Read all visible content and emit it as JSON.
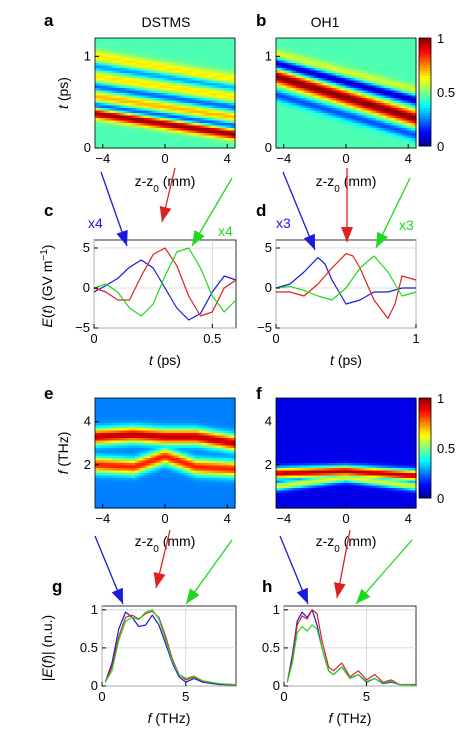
{
  "figure": {
    "panel_letters": [
      "a",
      "b",
      "c",
      "d",
      "e",
      "f",
      "g",
      "h"
    ],
    "column_titles": [
      "DSTMS",
      "OH1"
    ],
    "colorbar_ticks": [
      "1",
      "0.5",
      "0"
    ],
    "colormap": [
      "#00008f",
      "#0000ff",
      "#0080ff",
      "#00ffff",
      "#80ff80",
      "#ffff00",
      "#ff8000",
      "#ff0000",
      "#800000"
    ],
    "arrow_colors": {
      "blue": "#1a1adc",
      "red": "#e02020",
      "green": "#20d820"
    },
    "annotations": {
      "c_blue": "x4",
      "c_green": "x4",
      "d_blue": "x3",
      "d_green": "x3"
    }
  },
  "chart_data": [
    {
      "panel": "a",
      "type": "heatmap",
      "title": "DSTMS",
      "xlabel": "z-z0 (mm)",
      "ylabel": "t (ps)",
      "xticks": [
        "-4",
        "0",
        "4"
      ],
      "yticks": [
        "0",
        "1"
      ],
      "xlim": [
        -4.5,
        4.5
      ],
      "ylim": [
        0,
        1.2
      ],
      "ridges": [
        {
          "x": [
            -4.5,
            4.5
          ],
          "y": [
            0.38,
            0.15
          ],
          "width": 0.06,
          "level": 1.0
        },
        {
          "x": [
            -4.5,
            4.5
          ],
          "y": [
            0.56,
            0.33
          ],
          "width": 0.07,
          "level": 0.7
        },
        {
          "x": [
            -4.5,
            4.5
          ],
          "y": [
            0.78,
            0.56
          ],
          "width": 0.07,
          "level": 0.65
        },
        {
          "x": [
            -4.5,
            4.5
          ],
          "y": [
            1.0,
            0.74
          ],
          "width": 0.07,
          "level": 0.65
        }
      ],
      "troughs": [
        {
          "x": [
            -4.5,
            4.5
          ],
          "y": [
            0.46,
            0.24
          ],
          "width": 0.05,
          "level": 0.15
        },
        {
          "x": [
            -4.5,
            4.5
          ],
          "y": [
            0.67,
            0.44
          ],
          "width": 0.05,
          "level": 0.2
        },
        {
          "x": [
            -4.5,
            4.5
          ],
          "y": [
            0.89,
            0.66
          ],
          "width": 0.05,
          "level": 0.25
        }
      ],
      "background": 0.45
    },
    {
      "panel": "b",
      "type": "heatmap",
      "title": "OH1",
      "xlabel": "z-z0 (mm)",
      "ylabel": "",
      "xticks": [
        "-4",
        "0",
        "4"
      ],
      "yticks": [
        "0",
        "1"
      ],
      "xlim": [
        -4.5,
        4.5
      ],
      "ylim": [
        0,
        1.2
      ],
      "ridges": [
        {
          "x": [
            -4.5,
            4.5
          ],
          "y": [
            0.78,
            0.32
          ],
          "width": 0.08,
          "level": 1.0
        },
        {
          "x": [
            -4.5,
            4.5
          ],
          "y": [
            1.02,
            0.62
          ],
          "width": 0.06,
          "level": 0.6
        }
      ],
      "troughs": [
        {
          "x": [
            -4.5,
            4.5
          ],
          "y": [
            0.92,
            0.52
          ],
          "width": 0.06,
          "level": 0.05
        },
        {
          "x": [
            -4.5,
            4.5
          ],
          "y": [
            0.58,
            0.14
          ],
          "width": 0.06,
          "level": 0.2
        }
      ],
      "background": 0.45
    },
    {
      "panel": "c",
      "type": "line",
      "xlabel": "t (ps)",
      "ylabel": "E(t) (GV m⁻¹)",
      "xticks": [
        "0",
        "0.5"
      ],
      "yticks": [
        "-5",
        "0",
        "5"
      ],
      "xlim": [
        0,
        0.6
      ],
      "ylim": [
        -5,
        6
      ],
      "series": [
        {
          "color": "blue",
          "x": [
            0,
            0.05,
            0.1,
            0.15,
            0.2,
            0.25,
            0.3,
            0.35,
            0.4,
            0.45,
            0.5,
            0.55,
            0.6
          ],
          "y": [
            -0.5,
            0.3,
            1.2,
            2.6,
            3.5,
            2.5,
            0.0,
            -2.5,
            -4.0,
            -3.2,
            -0.5,
            1.5,
            1.0
          ]
        },
        {
          "color": "red",
          "x": [
            0,
            0.05,
            0.1,
            0.15,
            0.2,
            0.25,
            0.3,
            0.35,
            0.4,
            0.45,
            0.5,
            0.55,
            0.6
          ],
          "y": [
            0.0,
            -0.5,
            -1.5,
            -1.5,
            1.5,
            4.2,
            5.0,
            2.8,
            -1.0,
            -3.5,
            -3.0,
            0.0,
            1.0
          ]
        },
        {
          "color": "green",
          "x": [
            0,
            0.05,
            0.1,
            0.15,
            0.2,
            0.25,
            0.3,
            0.35,
            0.4,
            0.45,
            0.5,
            0.55,
            0.6
          ],
          "y": [
            0.0,
            0.5,
            -0.5,
            -2.5,
            -3.5,
            -2.0,
            1.5,
            4.5,
            5.0,
            2.5,
            -1.0,
            -3.0,
            -1.5
          ]
        }
      ]
    },
    {
      "panel": "d",
      "type": "line",
      "xlabel": "t (ps)",
      "ylabel": "",
      "xticks": [
        "0",
        "1"
      ],
      "yticks": [
        "-5",
        "0",
        "5"
      ],
      "xlim": [
        0,
        1
      ],
      "ylim": [
        -5,
        6
      ],
      "series": [
        {
          "color": "blue",
          "x": [
            0,
            0.1,
            0.2,
            0.3,
            0.35,
            0.4,
            0.5,
            0.6,
            0.7,
            0.8,
            0.9,
            1.0
          ],
          "y": [
            0.0,
            0.5,
            2.0,
            3.8,
            3.0,
            1.0,
            -2.0,
            -1.5,
            -0.5,
            -0.5,
            0.0,
            0.0
          ]
        },
        {
          "color": "red",
          "x": [
            0,
            0.1,
            0.2,
            0.3,
            0.4,
            0.5,
            0.55,
            0.6,
            0.7,
            0.8,
            0.85,
            0.9,
            1.0
          ],
          "y": [
            -0.5,
            -0.5,
            -1.0,
            0.5,
            2.5,
            4.3,
            4.0,
            2.5,
            -1.5,
            -3.8,
            -2.0,
            1.5,
            1.0
          ]
        },
        {
          "color": "green",
          "x": [
            0,
            0.1,
            0.2,
            0.3,
            0.4,
            0.5,
            0.6,
            0.7,
            0.8,
            0.85,
            0.9,
            1.0
          ],
          "y": [
            0.0,
            0.2,
            -0.3,
            -1.0,
            -1.5,
            0.0,
            2.5,
            4.0,
            2.0,
            0.5,
            -1.0,
            -0.5
          ]
        }
      ]
    },
    {
      "panel": "e",
      "type": "heatmap",
      "xlabel": "z-z0 (mm)",
      "ylabel": "f (THz)",
      "xticks": [
        "-4",
        "0",
        "4"
      ],
      "yticks": [
        "2",
        "4"
      ],
      "xlim": [
        -4.5,
        4.5
      ],
      "ylim": [
        0,
        5.1
      ],
      "ridges": [
        {
          "x": [
            -4.5,
            -2.0,
            0.0,
            2.0,
            4.5
          ],
          "y": [
            3.3,
            3.4,
            3.3,
            3.3,
            3.0
          ],
          "width": 0.35,
          "level": 0.95
        },
        {
          "x": [
            -4.5,
            -2.0,
            0.0,
            2.0,
            4.5
          ],
          "y": [
            2.0,
            1.9,
            2.4,
            1.9,
            1.8
          ],
          "width": 0.35,
          "level": 0.85
        }
      ],
      "troughs": [],
      "background": 0.25
    },
    {
      "panel": "f",
      "type": "heatmap",
      "xlabel": "z-z0 (mm)",
      "ylabel": "",
      "xticks": [
        "-4",
        "0",
        "4"
      ],
      "yticks": [
        "2",
        "4"
      ],
      "xlim": [
        -4.5,
        4.5
      ],
      "ylim": [
        0,
        5.1
      ],
      "ridges": [
        {
          "x": [
            -4.5,
            0.0,
            4.5
          ],
          "y": [
            1.6,
            1.7,
            1.5
          ],
          "width": 0.25,
          "level": 0.95
        },
        {
          "x": [
            -4.5,
            0.0,
            4.5
          ],
          "y": [
            1.0,
            1.4,
            1.0
          ],
          "width": 0.2,
          "level": 0.6
        }
      ],
      "troughs": [],
      "background": 0.1
    },
    {
      "panel": "g",
      "type": "line",
      "xlabel": "f (THz)",
      "ylabel": "|E(f)| (n.u.)",
      "xticks": [
        "0",
        "5"
      ],
      "yticks": [
        "0",
        "0.5",
        "1"
      ],
      "xlim": [
        0,
        8
      ],
      "ylim": [
        0,
        1.05
      ],
      "series": [
        {
          "color": "blue",
          "x": [
            0.2,
            0.6,
            1.0,
            1.4,
            1.8,
            2.2,
            2.6,
            3.0,
            3.4,
            3.8,
            4.2,
            4.6,
            5.0,
            5.5,
            6.0,
            7.0,
            8.0
          ],
          "y": [
            0.05,
            0.3,
            0.75,
            0.97,
            0.9,
            0.78,
            0.8,
            0.93,
            0.8,
            0.55,
            0.3,
            0.12,
            0.05,
            0.1,
            0.05,
            0.02,
            0.01
          ]
        },
        {
          "color": "red",
          "x": [
            0.2,
            0.6,
            1.0,
            1.4,
            1.8,
            2.2,
            2.6,
            3.0,
            3.4,
            3.8,
            4.2,
            4.6,
            5.0,
            5.5,
            6.0,
            7.0,
            8.0
          ],
          "y": [
            0.05,
            0.25,
            0.65,
            0.9,
            0.93,
            0.88,
            0.95,
            0.98,
            0.9,
            0.65,
            0.35,
            0.15,
            0.08,
            0.12,
            0.06,
            0.03,
            0.01
          ]
        },
        {
          "color": "green",
          "x": [
            0.2,
            0.6,
            1.0,
            1.4,
            1.8,
            2.2,
            2.6,
            3.0,
            3.4,
            3.8,
            4.2,
            4.6,
            5.0,
            5.5,
            6.0,
            7.0,
            8.0
          ],
          "y": [
            0.05,
            0.2,
            0.6,
            0.85,
            0.9,
            0.87,
            0.97,
            1.0,
            0.88,
            0.6,
            0.32,
            0.15,
            0.1,
            0.13,
            0.07,
            0.03,
            0.02
          ]
        }
      ]
    },
    {
      "panel": "h",
      "type": "line",
      "xlabel": "f (THz)",
      "ylabel": "",
      "xticks": [
        "0",
        "5"
      ],
      "yticks": [
        "0",
        "0.5",
        "1"
      ],
      "xlim": [
        0,
        8
      ],
      "ylim": [
        0,
        1.05
      ],
      "series": [
        {
          "color": "blue",
          "x": [
            0.2,
            0.5,
            0.8,
            1.1,
            1.4,
            1.7,
            2.0,
            2.3,
            2.7,
            3.0,
            3.5,
            4.0,
            4.5,
            5.0,
            5.5,
            6.0,
            6.5,
            7.0,
            8.0
          ],
          "y": [
            0.05,
            0.4,
            0.85,
            0.97,
            0.9,
            1.0,
            0.8,
            0.5,
            0.2,
            0.15,
            0.25,
            0.1,
            0.15,
            0.05,
            0.1,
            0.03,
            0.05,
            0.02,
            0.01
          ]
        },
        {
          "color": "red",
          "x": [
            0.2,
            0.5,
            0.8,
            1.1,
            1.4,
            1.7,
            2.0,
            2.3,
            2.7,
            3.0,
            3.5,
            4.0,
            4.5,
            5.0,
            5.5,
            6.0,
            6.5,
            7.0,
            8.0
          ],
          "y": [
            0.05,
            0.35,
            0.8,
            0.92,
            0.88,
            1.0,
            0.95,
            0.6,
            0.25,
            0.2,
            0.3,
            0.12,
            0.2,
            0.08,
            0.15,
            0.05,
            0.08,
            0.02,
            0.02
          ]
        },
        {
          "color": "green",
          "x": [
            0.2,
            0.5,
            0.8,
            1.1,
            1.4,
            1.7,
            2.0,
            2.3,
            2.7,
            3.0,
            3.5,
            4.0,
            4.5,
            5.0,
            5.5,
            6.0,
            6.5,
            7.0,
            8.0
          ],
          "y": [
            0.05,
            0.3,
            0.7,
            0.78,
            0.72,
            0.8,
            0.75,
            0.5,
            0.2,
            0.15,
            0.25,
            0.1,
            0.15,
            0.06,
            0.1,
            0.04,
            0.06,
            0.02,
            0.01
          ]
        }
      ]
    }
  ]
}
